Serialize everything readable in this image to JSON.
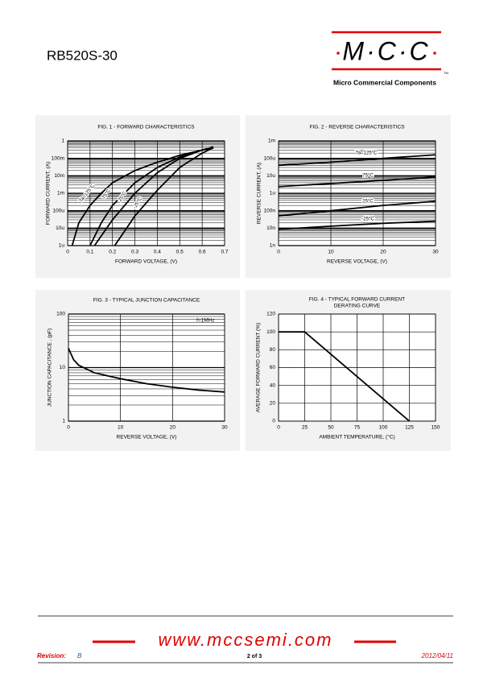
{
  "header": {
    "part": "RB520S-30",
    "logo": "M·C·C",
    "tm": "TM",
    "company": "Micro Commercial Components"
  },
  "footer": {
    "website": "www.mccsemi.com",
    "revision_label": "Revision:",
    "revision": "B",
    "page": "2 of 3",
    "date": "2012/04/11"
  },
  "chart_data": [
    {
      "type": "line",
      "title": "FIG. 1 - FORWARD CHARACTERISTICS",
      "x_label": "FORWARD VOLTAGE, (V)",
      "y_label": "FORWARD CURRENT, (A)",
      "yscale": "log",
      "minor_grid": true,
      "grid": true,
      "xlim": [
        0,
        0.7
      ],
      "xticks": [
        0,
        0.1,
        0.2,
        0.3,
        0.4,
        0.5,
        0.6,
        0.7
      ],
      "ylim": [
        1e-06,
        1
      ],
      "yticks": [
        {
          "value": 1e-06,
          "label": "1u"
        },
        {
          "value": 1e-05,
          "label": "10u"
        },
        {
          "value": 0.0001,
          "label": "100u"
        },
        {
          "value": 0.001,
          "label": "1m"
        },
        {
          "value": 0.01,
          "label": "10m"
        },
        {
          "value": 0.1,
          "label": "100m"
        },
        1
      ],
      "series": [
        {
          "name": "Ta=125°C",
          "color": "#000000",
          "x": [
            0.02,
            0.05,
            0.1,
            0.15,
            0.2,
            0.3,
            0.4,
            0.5,
            0.6,
            0.65
          ],
          "values": [
            1e-06,
            2e-05,
            0.0002,
            0.001,
            0.004,
            0.02,
            0.06,
            0.15,
            0.3,
            0.4
          ]
        },
        {
          "name": "75°C",
          "color": "#000000",
          "x": [
            0.1,
            0.15,
            0.2,
            0.3,
            0.4,
            0.5,
            0.6,
            0.65
          ],
          "values": [
            1e-06,
            2e-05,
            0.0002,
            0.004,
            0.03,
            0.12,
            0.3,
            0.4
          ]
        },
        {
          "name": "25°C",
          "color": "#000000",
          "x": [
            0.12,
            0.2,
            0.3,
            0.4,
            0.5,
            0.6,
            0.65
          ],
          "values": [
            1e-06,
            3e-05,
            0.001,
            0.015,
            0.1,
            0.3,
            0.45
          ]
        },
        {
          "name": "-25°C",
          "color": "#000000",
          "x": [
            0.21,
            0.3,
            0.4,
            0.5,
            0.6,
            0.65
          ],
          "values": [
            1e-06,
            5e-05,
            0.0015,
            0.03,
            0.2,
            0.4
          ]
        }
      ]
    },
    {
      "type": "line",
      "title": "FIG. 2 - REVERSE CHARACTERISTICS",
      "x_label": "REVERSE VOLTAGE, (V)",
      "y_label": "REVERSE CURRENT, (A)",
      "yscale": "log",
      "minor_grid": true,
      "grid": true,
      "xlim": [
        0,
        30
      ],
      "xticks": [
        0,
        10,
        20,
        30
      ],
      "ylim": [
        1e-09,
        0.001
      ],
      "yticks": [
        {
          "value": 1e-09,
          "label": "1n"
        },
        {
          "value": 1e-08,
          "label": "10n"
        },
        {
          "value": 1e-07,
          "label": "100n"
        },
        {
          "value": 1e-06,
          "label": "1u"
        },
        {
          "value": 1e-05,
          "label": "10u"
        },
        {
          "value": 0.0001,
          "label": "100u"
        },
        {
          "value": 0.001,
          "label": "1m"
        }
      ],
      "series": [
        {
          "name": "Ta=125°C",
          "color": "#000000",
          "x": [
            0,
            10,
            20,
            30
          ],
          "values": [
            4e-05,
            6e-05,
            0.0001,
            0.00016
          ]
        },
        {
          "name": "75°C",
          "color": "#000000",
          "x": [
            0,
            10,
            20,
            30
          ],
          "values": [
            2.4e-06,
            3.6e-06,
            5.5e-06,
            8.5e-06
          ]
        },
        {
          "name": "25°C",
          "color": "#000000",
          "x": [
            0,
            10,
            20,
            30
          ],
          "values": [
            5e-08,
            1e-07,
            2e-07,
            3.5e-07
          ]
        },
        {
          "name": "-25°C",
          "color": "#000000",
          "x": [
            0,
            10,
            20,
            30
          ],
          "values": [
            8.6e-09,
            1.3e-08,
            1.9e-08,
            2.5e-08
          ]
        }
      ]
    },
    {
      "type": "line",
      "title": "FIG. 3 - TYPICAL JUNCTION CAPACITANCE",
      "x_label": "REVERSE  VOLTAGE, (V)",
      "y_label": "JUNCTION CAPACITANCE , (pF)",
      "annotation": "f=1MHz",
      "yscale": "log",
      "minor_grid": true,
      "grid": true,
      "xlim": [
        0,
        30
      ],
      "xticks": [
        0,
        10,
        20,
        30
      ],
      "ylim": [
        1,
        100
      ],
      "yticks": [
        1,
        10,
        100
      ],
      "series": [
        {
          "color": "#000000",
          "x": [
            0,
            1,
            2,
            5,
            10,
            15,
            20,
            25,
            30
          ],
          "values": [
            23,
            14,
            11,
            8,
            6.2,
            5,
            4.3,
            3.8,
            3.5
          ]
        }
      ]
    },
    {
      "type": "line",
      "title": "FIG. 4 - TYPICAL FORWARD CURRENT",
      "subtitle": "DERATING CURVE",
      "x_label": "AMBIENT  TEMPERATURE, (°C)",
      "y_label": "AVERAGE FORWARD CURRENT (%)",
      "yscale": "linear",
      "grid": true,
      "xlim": [
        0,
        150
      ],
      "xticks": [
        0,
        25,
        50,
        75,
        100,
        125,
        150
      ],
      "ylim": [
        0,
        120
      ],
      "yticks": [
        0,
        20,
        40,
        60,
        80,
        100,
        120
      ],
      "series": [
        {
          "color": "#000000",
          "x": [
            0,
            25,
            125
          ],
          "values": [
            100,
            100,
            0
          ]
        }
      ]
    }
  ]
}
